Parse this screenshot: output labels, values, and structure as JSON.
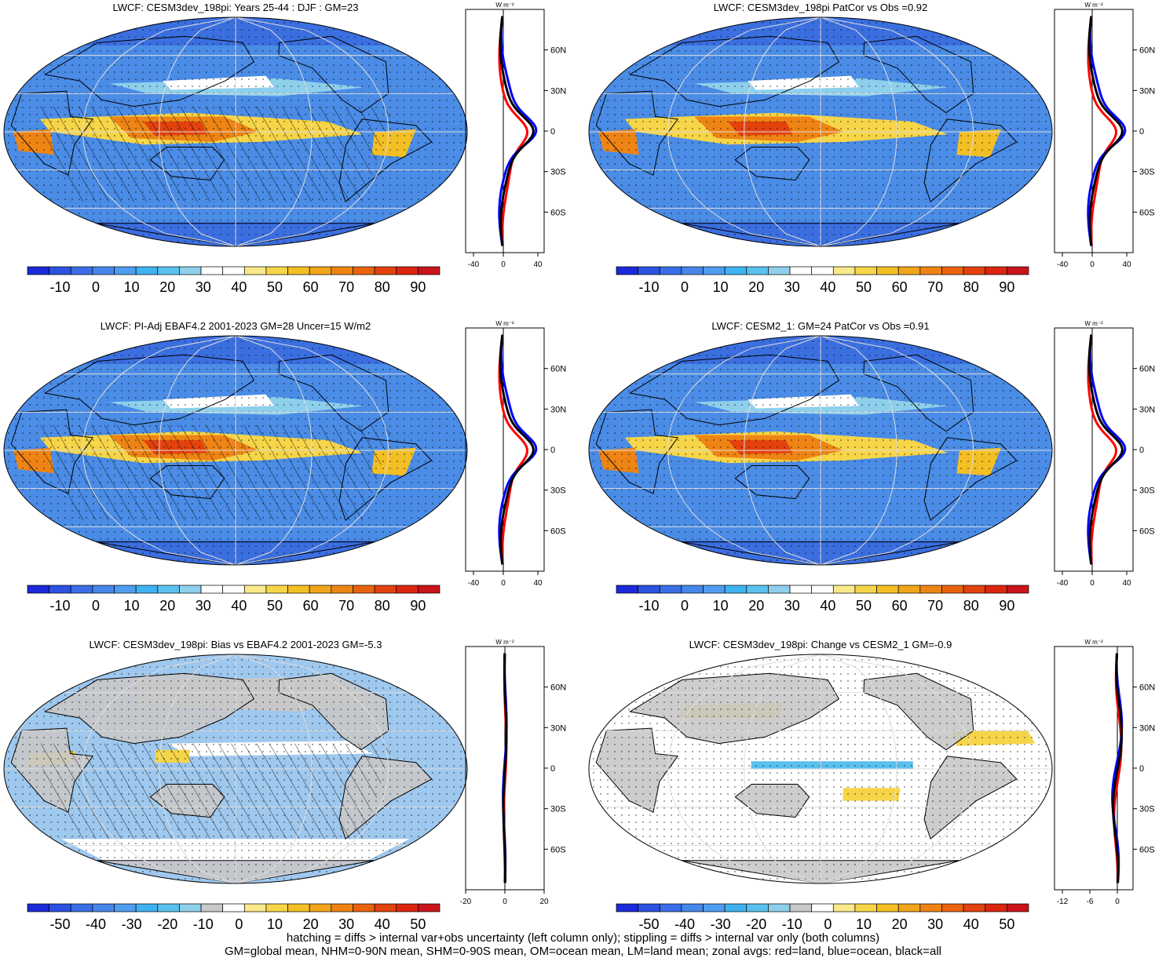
{
  "panels": [
    {
      "id": "p1",
      "title": "LWCF: CESM3dev_198pi: Years 25-44 : DJF : GM=23",
      "kind": "abs",
      "colorbar_labels": [
        "-10",
        "0",
        "10",
        "20",
        "30",
        "40",
        "50",
        "60",
        "70",
        "80",
        "90"
      ],
      "zonal_ticks": [
        "-40",
        "0",
        "40"
      ],
      "zonal_units": "W m⁻²",
      "lat_labels": [
        "60N",
        "30N",
        "0",
        "30S",
        "60S"
      ],
      "hatching": true
    },
    {
      "id": "p2",
      "title": "LWCF: CESM3dev_198pi PatCor vs Obs =0.92",
      "kind": "abs",
      "colorbar_labels": [
        "-10",
        "0",
        "10",
        "20",
        "30",
        "40",
        "50",
        "60",
        "70",
        "80",
        "90"
      ],
      "zonal_ticks": [
        "-40",
        "0",
        "40"
      ],
      "zonal_units": "W m⁻²",
      "lat_labels": [
        "60N",
        "30N",
        "0",
        "30S",
        "60S"
      ],
      "hatching": false
    },
    {
      "id": "p3",
      "title": "LWCF: PI-Adj EBAF4.2 2001-2023 GM=28 Uncer=15 W/m2",
      "kind": "abs",
      "colorbar_labels": [
        "-10",
        "0",
        "10",
        "20",
        "30",
        "40",
        "50",
        "60",
        "70",
        "80",
        "90"
      ],
      "zonal_ticks": [
        "-40",
        "0",
        "40"
      ],
      "zonal_units": "W m⁻²",
      "lat_labels": [
        "60N",
        "30N",
        "0",
        "30S",
        "60S"
      ],
      "hatching": true
    },
    {
      "id": "p4",
      "title": "LWCF: CESM2_1: GM=24 PatCor vs Obs =0.91",
      "kind": "abs",
      "colorbar_labels": [
        "-10",
        "0",
        "10",
        "20",
        "30",
        "40",
        "50",
        "60",
        "70",
        "80",
        "90"
      ],
      "zonal_ticks": [
        "-40",
        "0",
        "40"
      ],
      "zonal_units": "W m⁻²",
      "lat_labels": [
        "60N",
        "30N",
        "0",
        "30S",
        "60S"
      ],
      "hatching": false
    },
    {
      "id": "p5",
      "title": "LWCF: CESM3dev_198pi: Bias vs EBAF4.2 2001-2023 GM=-5.3",
      "kind": "diff",
      "colorbar_labels": [
        "-50",
        "-40",
        "-30",
        "-20",
        "-10",
        "0",
        "10",
        "20",
        "30",
        "40",
        "50"
      ],
      "zonal_ticks": [
        "-20",
        "0",
        "20"
      ],
      "zonal_units": "W m⁻²",
      "lat_labels": [
        "60N",
        "30N",
        "0",
        "30S",
        "60S"
      ],
      "hatching": true
    },
    {
      "id": "p6",
      "title": "LWCF: CESM3dev_198pi: Change vs CESM2_1 GM=-0.9",
      "kind": "diff2",
      "colorbar_labels": [
        "-50",
        "-40",
        "-30",
        "-20",
        "-10",
        "0",
        "10",
        "20",
        "30",
        "40",
        "50"
      ],
      "zonal_ticks": [
        "-12",
        "-6",
        "0"
      ],
      "zonal_units": "W m⁻²",
      "lat_labels": [
        "60N",
        "30N",
        "0",
        "30S",
        "60S"
      ],
      "hatching": false
    }
  ],
  "colors": {
    "abs_scale": [
      "#1a2ad8",
      "#2b52e0",
      "#3a6ee6",
      "#4686ea",
      "#4f9df0",
      "#3fb3f2",
      "#5ac1ef",
      "#8ed0ec",
      "#ffffff",
      "#ffffff",
      "#f9e98a",
      "#f6d548",
      "#f3bf24",
      "#f1a51a",
      "#ee8414",
      "#e9630f",
      "#e3420e",
      "#dc2510",
      "#c8141a"
    ],
    "diff_scale": [
      "#1a2ad8",
      "#2b52e0",
      "#3a6ee6",
      "#4686ea",
      "#4f9df0",
      "#3fb3f2",
      "#5ac1ef",
      "#8ed0ec",
      "#c8c8c8",
      "#ffffff",
      "#f9e98a",
      "#f6d548",
      "#f3bf24",
      "#f1a51a",
      "#ee8414",
      "#e9630f",
      "#e3420e",
      "#dc2510",
      "#c8141a"
    ],
    "land_line": "#ff0000",
    "ocean_line": "#0000ff",
    "all_line": "#000000"
  },
  "footer": {
    "line1": "hatching = diffs > internal var+obs uncertainty (left column only); stippling = diffs > internal var only (both columns)",
    "line2": "GM=global mean, NHM=0-90N mean, SHM=0-90S mean, OM=ocean mean, LM=land mean; zonal avgs: red=land, blue=ocean, black=all"
  }
}
